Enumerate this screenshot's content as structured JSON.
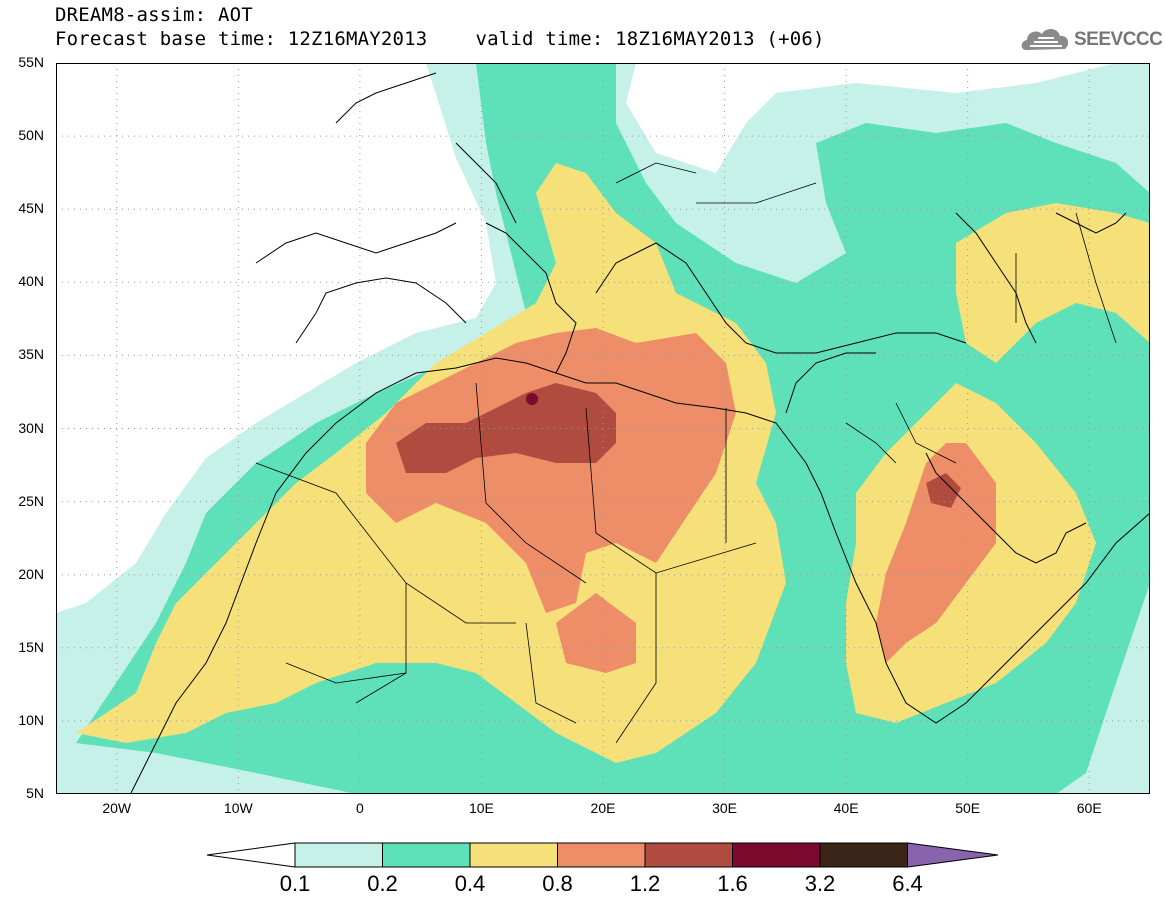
{
  "header": {
    "title": "DREAM8-assim: AOT",
    "base_time": "Forecast base time: 12Z16MAY2013",
    "valid_time": "valid time: 18Z16MAY2013 (+06)"
  },
  "logo": {
    "text": "SEEVCCC",
    "icon": "cloud-icon"
  },
  "map": {
    "lat_labels": [
      "55N",
      "50N",
      "45N",
      "40N",
      "35N",
      "30N",
      "25N",
      "20N",
      "15N",
      "10N",
      "5N"
    ],
    "lon_labels": [
      "20W",
      "10W",
      "0",
      "10E",
      "20E",
      "30E",
      "40E",
      "50E",
      "60E"
    ],
    "lon_range": [
      -25,
      65
    ],
    "lat_range": [
      5,
      55
    ],
    "grid": "dotted"
  },
  "legend": {
    "labels": [
      "0.1",
      "0.2",
      "0.4",
      "0.8",
      "1.2",
      "1.6",
      "3.2",
      "6.4"
    ],
    "colors": {
      "c01": "#c6f1e9",
      "c02": "#5ee0b9",
      "c04": "#f5e07a",
      "c08": "#ee8e68",
      "c12": "#b04b40",
      "c16": "#7b0a2e",
      "c32": "#3b2418",
      "c64": "#8a63ae"
    }
  }
}
